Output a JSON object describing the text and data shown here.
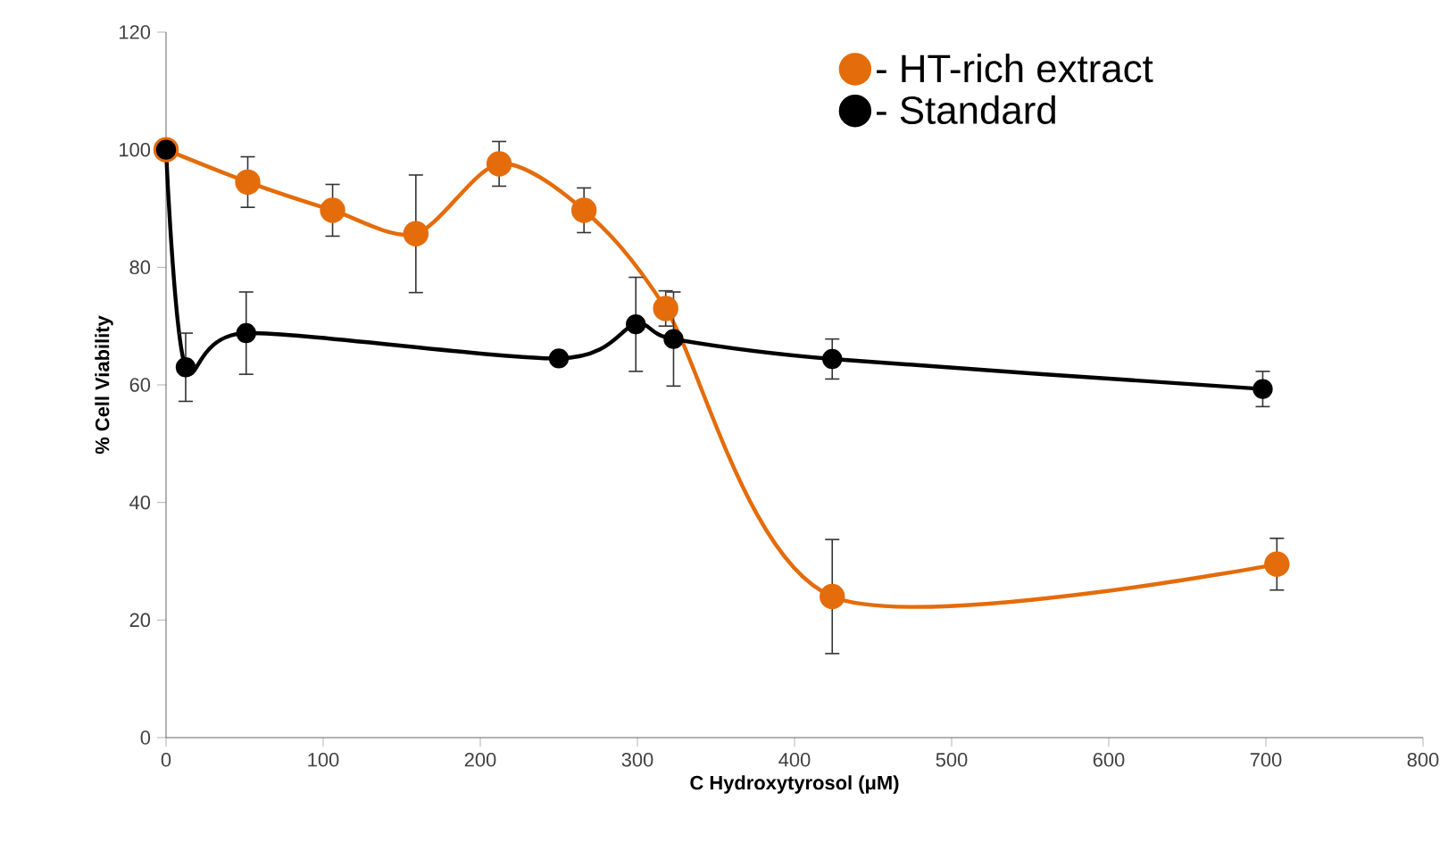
{
  "chart_data": {
    "type": "line",
    "xlabel": "C Hydroxytyrosol (μM)",
    "ylabel": "% Cell Viability",
    "xlim": [
      0,
      800
    ],
    "xticks": [
      0,
      100,
      200,
      300,
      400,
      500,
      600,
      700,
      800
    ],
    "ylim": [
      0,
      120
    ],
    "yticks": [
      0,
      20,
      40,
      60,
      80,
      100,
      120
    ],
    "grid": false,
    "legend": "top right",
    "marker": "circle",
    "line_style": "solid",
    "series": [
      {
        "name": "- HT-rich extract",
        "color": "#e46c0a",
        "x": [
          0,
          52,
          106,
          159,
          212,
          266,
          318,
          424,
          707
        ],
        "values": [
          100,
          94.5,
          89.7,
          85.7,
          97.6,
          89.7,
          73,
          24,
          29.5
        ],
        "errors": [
          null,
          4.3,
          4.4,
          10,
          3.8,
          3.8,
          3,
          9.7,
          4.4
        ]
      },
      {
        "name": "- Standard",
        "color": "#000000",
        "x": [
          0,
          12.5,
          51,
          250,
          299,
          323,
          424,
          698
        ],
        "values": [
          100,
          63,
          68.8,
          64.5,
          70.3,
          67.8,
          64.4,
          59.3
        ],
        "errors": [
          null,
          5.8,
          7,
          1,
          8,
          8,
          3.4,
          3
        ]
      }
    ]
  }
}
